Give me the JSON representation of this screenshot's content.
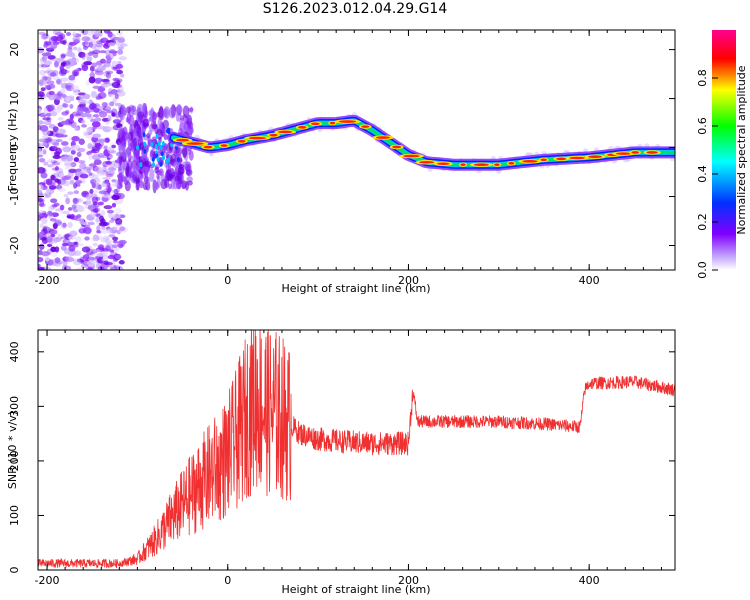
{
  "title": "S126.2023.012.04.29.G14",
  "chart_data": [
    {
      "type": "heatmap",
      "xlabel": "Height of straight line (km)",
      "ylabel": "Frequency (Hz)",
      "xlim": [
        -210,
        495
      ],
      "ylim": [
        -25,
        24
      ],
      "xticks": [
        -200,
        0,
        200,
        400
      ],
      "yticks": [
        -20,
        -10,
        0,
        10,
        20
      ],
      "colorbar": {
        "label": "Normalized spectral amplitude",
        "range": [
          0,
          1
        ],
        "ticks": [
          "0.0",
          "0.2",
          "0.4",
          "0.6",
          "0.8"
        ],
        "colors": [
          "#ffffff",
          "#8000ff",
          "#0040ff",
          "#00ffff",
          "#00ff00",
          "#ffff00",
          "#ff0000",
          "#ff00a0"
        ]
      },
      "ridge": {
        "x": [
          -140,
          -120,
          -100,
          -80,
          -60,
          -40,
          -20,
          0,
          20,
          50,
          80,
          100,
          120,
          140,
          160,
          180,
          200,
          220,
          250,
          300,
          350,
          400,
          450,
          495
        ],
        "frequency": [
          -1,
          0,
          1,
          -2,
          2,
          1,
          0,
          0.5,
          1.5,
          2.5,
          4,
          5,
          5,
          5.5,
          3.5,
          1,
          -1.5,
          -3,
          -3.5,
          -3.5,
          -2.5,
          -2,
          -1,
          -1
        ]
      }
    },
    {
      "type": "line",
      "xlabel": "Height of straight line (km)",
      "ylabel": "SNR (10 * v/v)",
      "xlim": [
        -210,
        495
      ],
      "ylim": [
        0,
        440
      ],
      "xticks": [
        -200,
        0,
        200,
        400
      ],
      "yticks": [
        0,
        100,
        200,
        300,
        400
      ],
      "color": "#f03030",
      "envelope": {
        "x": [
          -210,
          -120,
          -100,
          -80,
          -60,
          -40,
          -20,
          -10,
          0,
          10,
          20,
          30,
          40,
          60,
          80,
          100,
          130,
          160,
          200,
          205,
          210,
          260,
          300,
          350,
          390,
          395,
          400,
          450,
          495
        ],
        "snr": [
          12,
          12,
          20,
          55,
          100,
          140,
          175,
          190,
          210,
          240,
          280,
          320,
          300,
          280,
          250,
          240,
          235,
          232,
          232,
          330,
          272,
          272,
          272,
          268,
          262,
          330,
          342,
          345,
          330
        ]
      }
    }
  ]
}
